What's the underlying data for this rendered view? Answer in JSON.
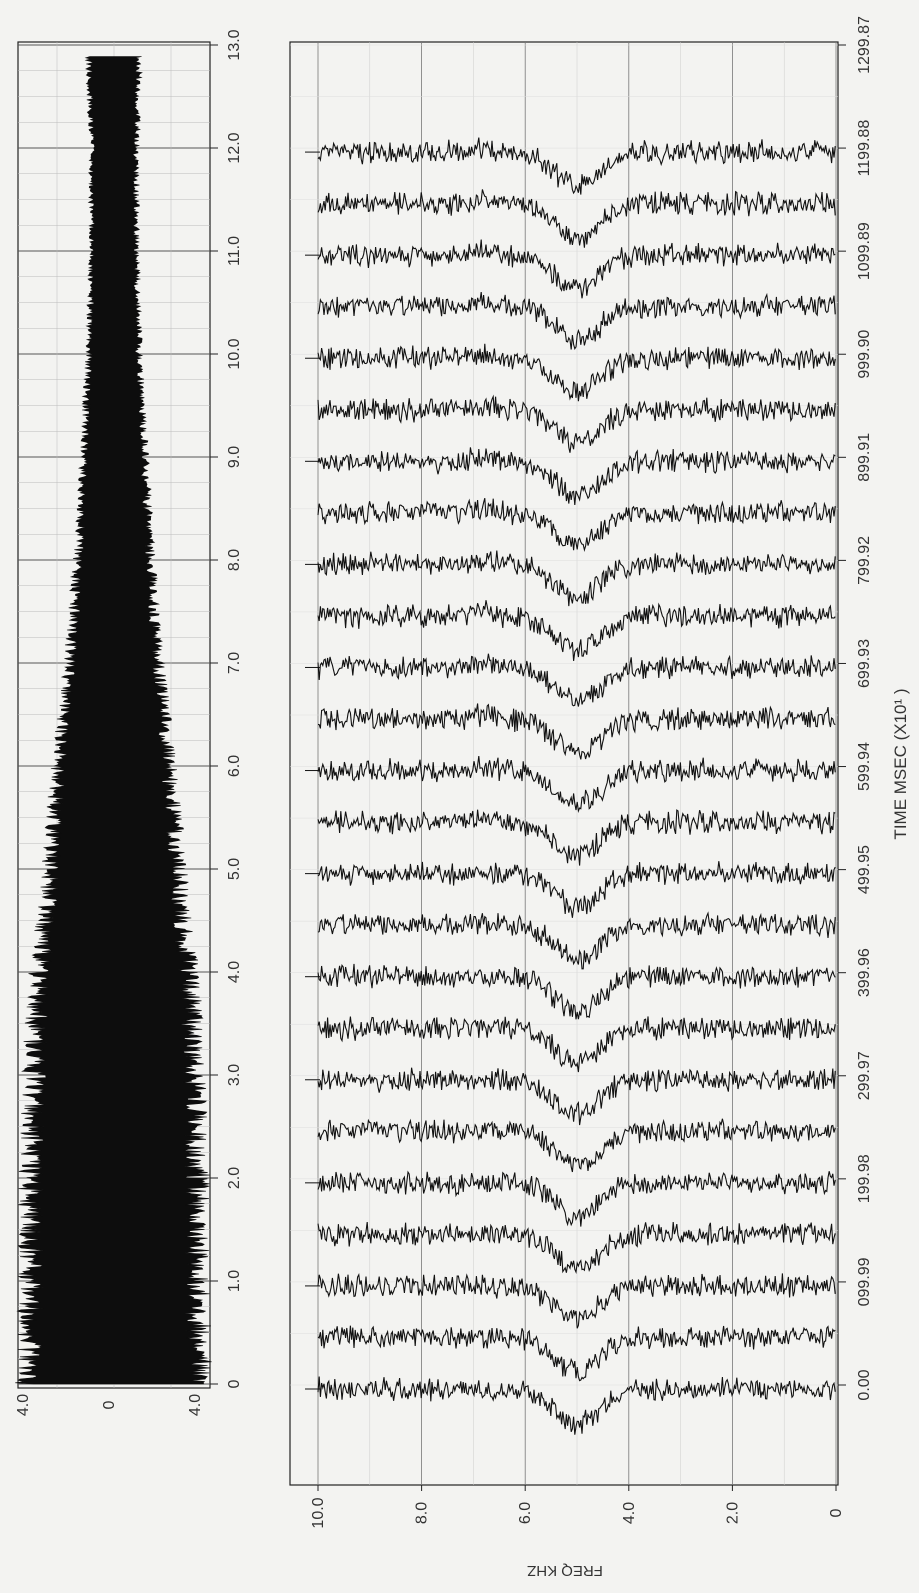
{
  "chart_data": [
    {
      "type": "line",
      "orientation": "rotated-90",
      "x_axis": {
        "ticks": [
          "0",
          "1.0",
          "2.0",
          "3.0",
          "4.0",
          "5.0",
          "6.0",
          "7.0",
          "8.0",
          "9.0",
          "10.0",
          "11.0",
          "12.0",
          "13.0"
        ]
      },
      "y_axis": {
        "ticks": [
          "4.0",
          "0",
          "4.0"
        ]
      },
      "series": [
        {
          "kind": "waveform-envelope",
          "x": [
            0,
            1.0,
            2.0,
            3.0,
            4.0,
            5.0,
            6.0,
            7.0,
            8.0,
            9.0,
            10.0,
            11.0,
            12.0,
            12.9
          ],
          "amplitude": [
            3.1,
            3.0,
            3.0,
            2.9,
            2.7,
            2.3,
            2.0,
            1.6,
            1.3,
            1.1,
            0.9,
            0.8,
            0.8,
            0.9
          ]
        }
      ]
    },
    {
      "type": "line",
      "orientation": "rotated-90",
      "xlabel": "TIME MSEC (X10¹   )",
      "ylabel": "FREQ  KHZ",
      "time_ticks": [
        "0.00",
        "099.99",
        "199.98",
        "299.97",
        "399.96",
        "499.95",
        "599.94",
        "699.93",
        "799.92",
        "899.91",
        "999.90",
        "1099.89",
        "1199.88",
        "1299.87"
      ],
      "freq_ticks": [
        "10.0",
        "8.0",
        "6.0",
        "4.0",
        "2.0",
        "0"
      ],
      "freq_range": [
        0,
        10
      ],
      "trace_count": 25,
      "trace_spacing_msec": 50,
      "notch_khz": 5.0
    }
  ]
}
